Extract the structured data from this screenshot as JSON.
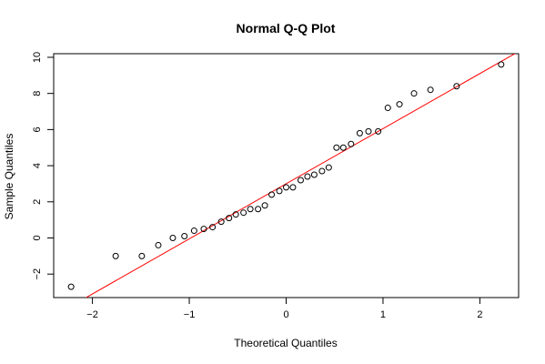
{
  "chart_data": {
    "type": "scatter",
    "title": "Normal Q-Q Plot",
    "xlabel": "Theoretical Quantiles",
    "ylabel": "Sample Quantiles",
    "xlim": [
      -2.4,
      2.4
    ],
    "ylim": [
      -3.3,
      10.2
    ],
    "xticks": [
      -2,
      -1,
      0,
      1,
      2
    ],
    "yticks": [
      -2,
      0,
      2,
      4,
      6,
      8,
      10
    ],
    "grid": false,
    "points": {
      "x": [
        -2.22,
        -1.76,
        -1.49,
        -1.32,
        -1.17,
        -1.05,
        -0.95,
        -0.85,
        -0.76,
        -0.67,
        -0.59,
        -0.52,
        -0.44,
        -0.37,
        -0.29,
        -0.22,
        -0.15,
        -0.07,
        0.0,
        0.07,
        0.15,
        0.22,
        0.29,
        0.37,
        0.44,
        0.52,
        0.59,
        0.67,
        0.76,
        0.85,
        0.95,
        1.05,
        1.17,
        1.32,
        1.49,
        1.76,
        2.22
      ],
      "y": [
        -2.7,
        -1.0,
        -1.0,
        -0.4,
        0.0,
        0.1,
        0.4,
        0.5,
        0.6,
        0.9,
        1.1,
        1.3,
        1.4,
        1.6,
        1.6,
        1.8,
        2.4,
        2.6,
        2.8,
        2.8,
        3.2,
        3.4,
        3.5,
        3.7,
        3.9,
        5.0,
        5.0,
        5.2,
        5.8,
        5.9,
        5.9,
        7.2,
        7.4,
        8.0,
        8.2,
        8.4,
        9.6
      ]
    },
    "reference_line": {
      "intercept": 3.0,
      "slope": 3.05,
      "color": "#ff0000"
    },
    "point_color": "#000000"
  }
}
